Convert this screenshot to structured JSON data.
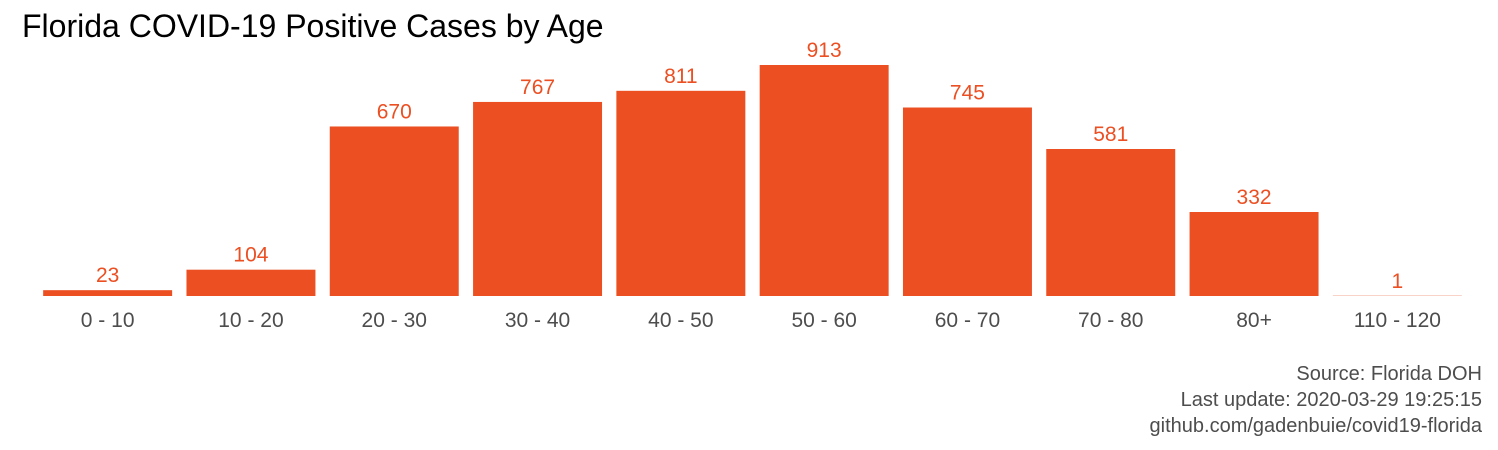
{
  "chart_data": {
    "type": "bar",
    "title": "Florida COVID-19 Positive Cases by Age",
    "xlabel": "",
    "ylabel": "",
    "categories": [
      "0 - 10",
      "10 - 20",
      "20 - 30",
      "30 - 40",
      "40 - 50",
      "50 - 60",
      "60 - 70",
      "70 - 80",
      "80+",
      "110 - 120"
    ],
    "values": [
      23,
      104,
      670,
      767,
      811,
      913,
      745,
      581,
      332,
      1
    ],
    "ylim": [
      0,
      913
    ],
    "grid": false,
    "legend": "none",
    "bar_color": "#EB4F22",
    "label_color": "#EB4F22",
    "tick_label_color": "#4d4d4d"
  },
  "caption": {
    "source": "Source: Florida DOH",
    "last_update": "Last update: 2020-03-29 19:25:15",
    "repo": "github.com/gadenbuie/covid19-florida"
  }
}
